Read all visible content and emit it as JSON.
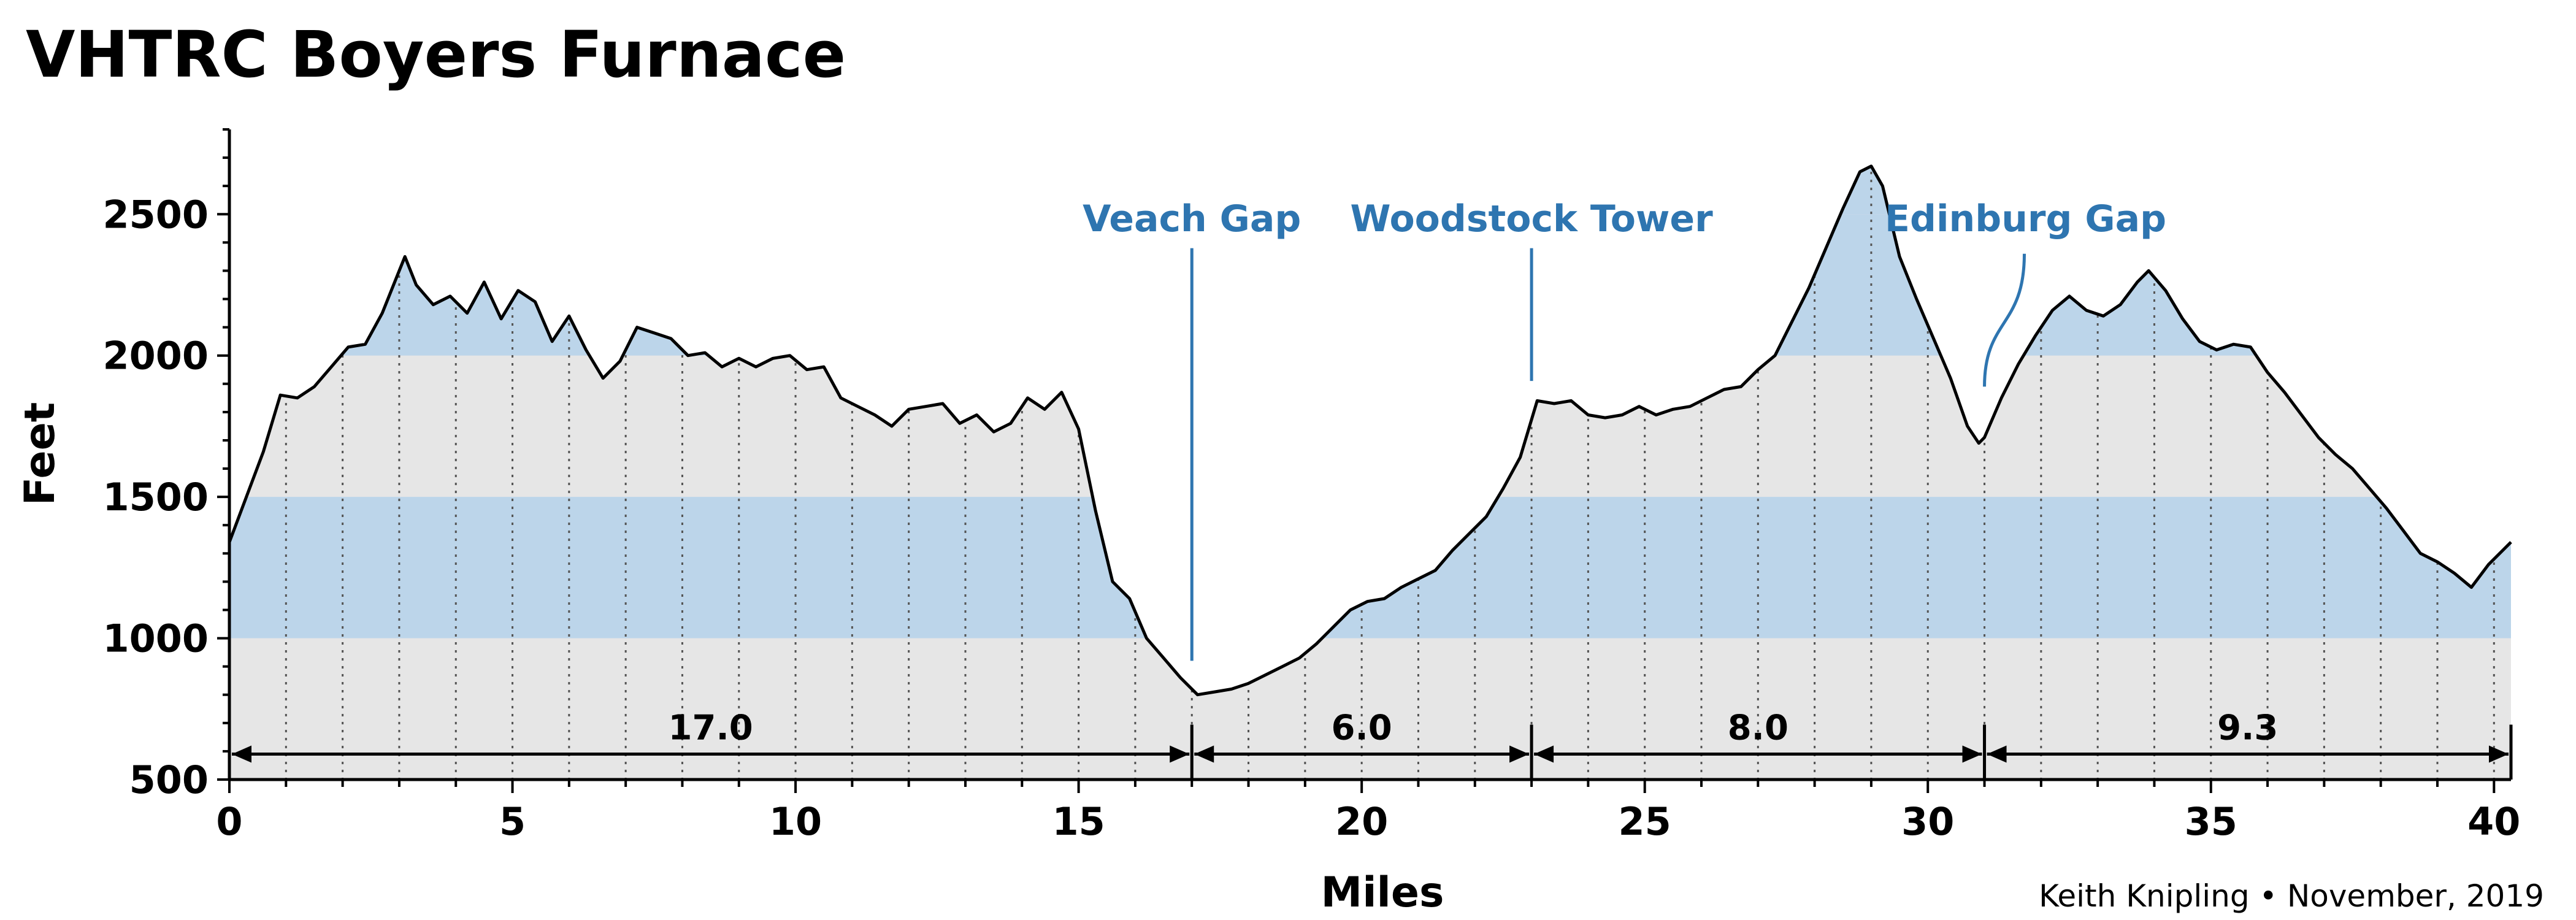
{
  "chart_data": {
    "type": "area",
    "title": "VHTRC Boyers Furnace",
    "xlabel": "Miles",
    "ylabel": "Feet",
    "xlim": [
      0,
      40.3
    ],
    "ylim": [
      500,
      2800
    ],
    "x_ticks": [
      0,
      5,
      10,
      15,
      20,
      25,
      30,
      35,
      40
    ],
    "y_ticks": [
      500,
      1000,
      1500,
      2000,
      2500
    ],
    "grid": "vertical dotted lines every mile",
    "bands": [
      {
        "from": 1000,
        "to": 1500,
        "color": "#bcd5ea"
      },
      {
        "from": 2000,
        "to": 2500,
        "color": "#bcd5ea"
      },
      {
        "from": 2500,
        "to": 3000,
        "color": "#bcd5ea"
      }
    ],
    "fill_color": "#e6e6e6",
    "band_color": "#bcd5ea",
    "annotation_color": "#2e75b0",
    "profile": {
      "x": [
        0,
        0.3,
        0.6,
        0.9,
        1.2,
        1.5,
        1.8,
        2.1,
        2.4,
        2.7,
        3.0,
        3.1,
        3.3,
        3.6,
        3.9,
        4.2,
        4.5,
        4.8,
        5.1,
        5.4,
        5.7,
        6.0,
        6.3,
        6.6,
        6.9,
        7.2,
        7.5,
        7.8,
        8.1,
        8.4,
        8.7,
        9.0,
        9.3,
        9.6,
        9.9,
        10.2,
        10.5,
        10.8,
        11.1,
        11.4,
        11.7,
        12.0,
        12.3,
        12.6,
        12.9,
        13.2,
        13.5,
        13.8,
        14.1,
        14.4,
        14.7,
        15.0,
        15.3,
        15.6,
        15.9,
        16.2,
        16.5,
        16.8,
        17.1,
        17.4,
        17.7,
        18.0,
        18.3,
        18.6,
        18.9,
        19.2,
        19.5,
        19.8,
        20.1,
        20.4,
        20.7,
        21.0,
        21.3,
        21.6,
        21.9,
        22.2,
        22.5,
        22.8,
        23.1,
        23.4,
        23.7,
        24.0,
        24.3,
        24.6,
        24.9,
        25.2,
        25.5,
        25.8,
        26.1,
        26.4,
        26.7,
        27.0,
        27.3,
        27.6,
        27.9,
        28.2,
        28.5,
        28.8,
        29.0,
        29.2,
        29.5,
        29.8,
        30.1,
        30.4,
        30.7,
        30.9,
        31.0,
        31.3,
        31.6,
        31.9,
        32.2,
        32.5,
        32.8,
        33.1,
        33.4,
        33.7,
        33.9,
        34.2,
        34.5,
        34.8,
        35.1,
        35.4,
        35.7,
        36.0,
        36.3,
        36.6,
        36.9,
        37.2,
        37.5,
        37.8,
        38.1,
        38.4,
        38.7,
        39.0,
        39.3,
        39.6,
        39.9,
        40.3
      ],
      "y": [
        1340,
        1500,
        1660,
        1860,
        1850,
        1890,
        1960,
        2030,
        2040,
        2150,
        2300,
        2350,
        2250,
        2180,
        2210,
        2150,
        2260,
        2130,
        2230,
        2190,
        2050,
        2140,
        2020,
        1920,
        1980,
        2100,
        2080,
        2060,
        2000,
        2010,
        1960,
        1990,
        1960,
        1990,
        2000,
        1950,
        1960,
        1850,
        1820,
        1790,
        1750,
        1810,
        1820,
        1830,
        1760,
        1790,
        1730,
        1760,
        1850,
        1810,
        1870,
        1740,
        1450,
        1200,
        1140,
        1000,
        930,
        860,
        800,
        810,
        820,
        840,
        870,
        900,
        930,
        980,
        1040,
        1100,
        1130,
        1140,
        1180,
        1210,
        1240,
        1310,
        1370,
        1430,
        1530,
        1640,
        1840,
        1830,
        1840,
        1790,
        1780,
        1790,
        1820,
        1790,
        1810,
        1820,
        1850,
        1880,
        1890,
        1950,
        2000,
        2120,
        2240,
        2380,
        2520,
        2650,
        2670,
        2600,
        2350,
        2200,
        2060,
        1920,
        1750,
        1690,
        1710,
        1850,
        1970,
        2070,
        2160,
        2210,
        2160,
        2140,
        2180,
        2260,
        2300,
        2230,
        2130,
        2050,
        2020,
        2040,
        2030,
        1940,
        1870,
        1790,
        1710,
        1650,
        1600,
        1530,
        1460,
        1380,
        1300,
        1270,
        1230,
        1180,
        1260,
        1340
      ]
    },
    "aid_stations": [
      {
        "mile": 17.0,
        "label": "Veach Gap"
      },
      {
        "mile": 23.0,
        "label": "Woodstock Tower"
      },
      {
        "mile": 31.0,
        "label": "Edinburg Gap"
      }
    ],
    "segments": [
      {
        "from": 0,
        "to": 17.0,
        "label": "17.0"
      },
      {
        "from": 17.0,
        "to": 23.0,
        "label": "6.0"
      },
      {
        "from": 23.0,
        "to": 31.0,
        "label": "8.0"
      },
      {
        "from": 31.0,
        "to": 40.3,
        "label": "9.3"
      }
    ],
    "credit": "Keith Knipling • November, 2019"
  }
}
